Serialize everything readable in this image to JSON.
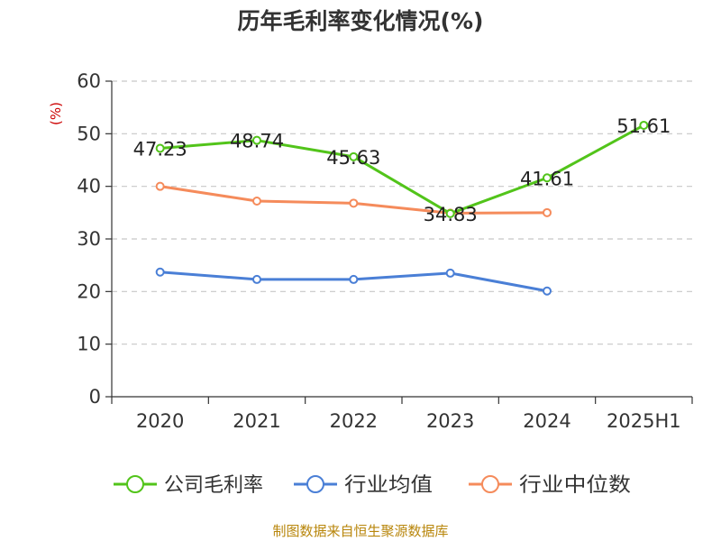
{
  "title": "历年毛利率变化情况(%)",
  "footer": "制图数据来自恒生聚源数据库",
  "chart_data": {
    "type": "line",
    "title": "历年毛利率变化情况(%)",
    "ylabel": "(%)",
    "xlabel": "",
    "ylim": [
      0,
      60
    ],
    "yticks": [
      0,
      10,
      20,
      30,
      40,
      50,
      60
    ],
    "categories": [
      "2020",
      "2021",
      "2022",
      "2023",
      "2024",
      "2025H1"
    ],
    "grid": true,
    "legend_position": "bottom",
    "series": [
      {
        "name": "公司毛利率",
        "color": "#52c41a",
        "values": [
          47.23,
          48.74,
          45.63,
          34.83,
          41.61,
          51.61
        ],
        "labels": [
          "47.23",
          "48.74",
          "45.63",
          "34.83",
          "41.61",
          "51.61"
        ]
      },
      {
        "name": "行业均值",
        "color": "#4a7fd6",
        "values": [
          23.7,
          22.3,
          22.3,
          23.5,
          20.1,
          null
        ]
      },
      {
        "name": "行业中位数",
        "color": "#f58b5b",
        "values": [
          40.0,
          37.2,
          36.8,
          34.9,
          35.0,
          null
        ]
      }
    ]
  }
}
